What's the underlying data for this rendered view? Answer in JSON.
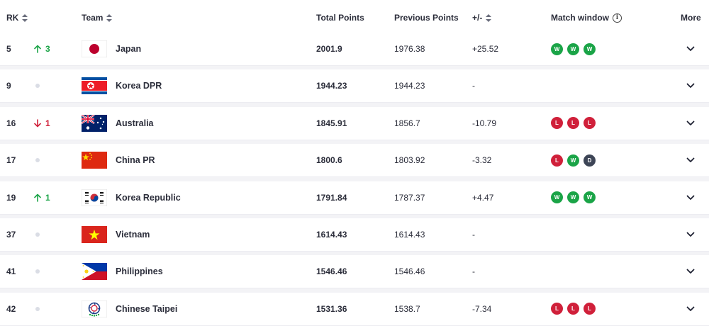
{
  "header": {
    "rk": "RK",
    "team": "Team",
    "total": "Total Points",
    "previous": "Previous Points",
    "diff": "+/-",
    "match_window": "Match window",
    "more": "More"
  },
  "rows": [
    {
      "rank": "5",
      "move": "up",
      "move_value": "3",
      "team": "Japan",
      "flag": "japan",
      "total": "2001.9",
      "previous": "1976.38",
      "diff": "+25.52",
      "results": [
        "W",
        "W",
        "W"
      ]
    },
    {
      "rank": "9",
      "move": "none",
      "move_value": "",
      "team": "Korea DPR",
      "flag": "korea-dpr",
      "total": "1944.23",
      "previous": "1944.23",
      "diff": "-",
      "results": []
    },
    {
      "rank": "16",
      "move": "down",
      "move_value": "1",
      "team": "Australia",
      "flag": "australia",
      "total": "1845.91",
      "previous": "1856.7",
      "diff": "-10.79",
      "results": [
        "L",
        "L",
        "L"
      ]
    },
    {
      "rank": "17",
      "move": "none",
      "move_value": "",
      "team": "China PR",
      "flag": "china",
      "total": "1800.6",
      "previous": "1803.92",
      "diff": "-3.32",
      "results": [
        "L",
        "W",
        "D"
      ]
    },
    {
      "rank": "19",
      "move": "up",
      "move_value": "1",
      "team": "Korea Republic",
      "flag": "korea-republic",
      "total": "1791.84",
      "previous": "1787.37",
      "diff": "+4.47",
      "results": [
        "W",
        "W",
        "W"
      ]
    },
    {
      "rank": "37",
      "move": "none",
      "move_value": "",
      "team": "Vietnam",
      "flag": "vietnam",
      "total": "1614.43",
      "previous": "1614.43",
      "diff": "-",
      "results": []
    },
    {
      "rank": "41",
      "move": "none",
      "move_value": "",
      "team": "Philippines",
      "flag": "philippines",
      "total": "1546.46",
      "previous": "1546.46",
      "diff": "-",
      "results": []
    },
    {
      "rank": "42",
      "move": "none",
      "move_value": "",
      "team": "Chinese Taipei",
      "flag": "chinese-taipei",
      "total": "1531.36",
      "previous": "1538.7",
      "diff": "-7.34",
      "results": [
        "L",
        "L",
        "L"
      ]
    }
  ],
  "colors": {
    "win": "#1aa447",
    "loss": "#d0203a",
    "draw": "#3d4556",
    "up": "#1aa447",
    "down": "#d0203a"
  }
}
